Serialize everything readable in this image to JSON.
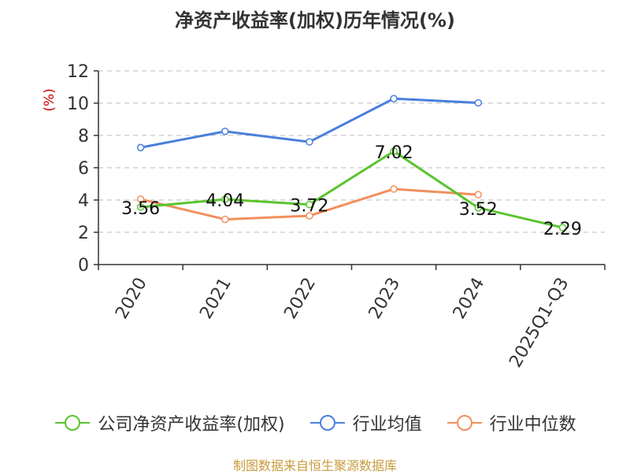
{
  "chart_data": {
    "type": "line",
    "title": "净资产收益率(加权)历年情况(%)",
    "ylabel": "(%)",
    "xlabel": "",
    "categories": [
      "2020",
      "2021",
      "2022",
      "2023",
      "2024",
      "2025Q1-Q3"
    ],
    "ylim": [
      0,
      12
    ],
    "yticks": [
      0,
      2,
      4,
      6,
      8,
      10,
      12
    ],
    "grid": true,
    "legend_position": "bottom",
    "series": [
      {
        "name": "公司净资产收益率(加权)",
        "color": "#5ac42e",
        "values": [
          3.56,
          4.04,
          3.72,
          7.02,
          3.52,
          2.29
        ],
        "labels": [
          "3.56",
          "4.04",
          "3.72",
          "7.02",
          "3.52",
          "2.29"
        ]
      },
      {
        "name": "行业均值",
        "color": "#4a7fdb",
        "values": [
          7.25,
          8.25,
          7.6,
          10.28,
          10.02,
          null
        ]
      },
      {
        "name": "行业中位数",
        "color": "#f28f5c",
        "values": [
          4.05,
          2.8,
          3.02,
          4.68,
          4.33,
          null
        ]
      }
    ]
  },
  "footer": {
    "source": "制图数据来自恒生聚源数据库"
  }
}
